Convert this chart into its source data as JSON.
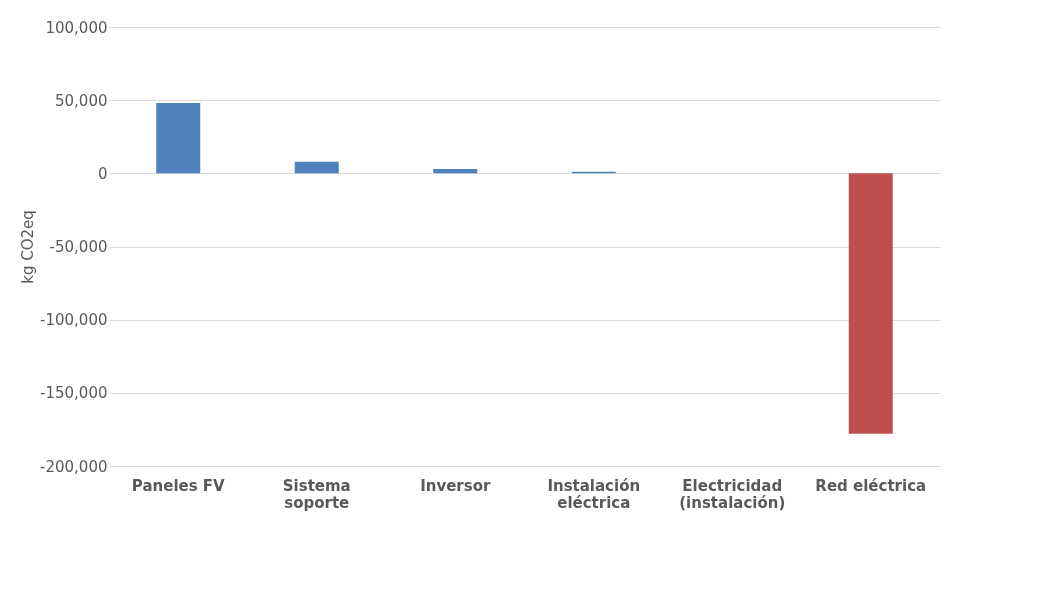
{
  "chart_data": {
    "type": "bar",
    "ylabel": "kg CO2eq",
    "categories": [
      "Paneles FV",
      "Sistema soporte",
      "Inversor",
      "Instalación eléctrica",
      "Electricidad (instalación)",
      "Red eléctrica"
    ],
    "values": [
      48000,
      8000,
      3000,
      1000,
      null,
      -178000
    ],
    "colors": [
      "#4f81bd",
      "#4f81bd",
      "#4f81bd",
      "#4f81bd",
      "#4f81bd",
      "#c0504d"
    ],
    "ylim": [
      -200000,
      100000
    ],
    "yticks": [
      {
        "value": -200000,
        "label": "-200,000"
      },
      {
        "value": -150000,
        "label": "-150,000"
      },
      {
        "value": -100000,
        "label": "-100,000"
      },
      {
        "value": -50000,
        "label": "-50,000"
      },
      0,
      {
        "value": 50000,
        "label": "50,000"
      },
      {
        "value": 100000,
        "label": "100,000"
      }
    ],
    "grid": "y"
  }
}
